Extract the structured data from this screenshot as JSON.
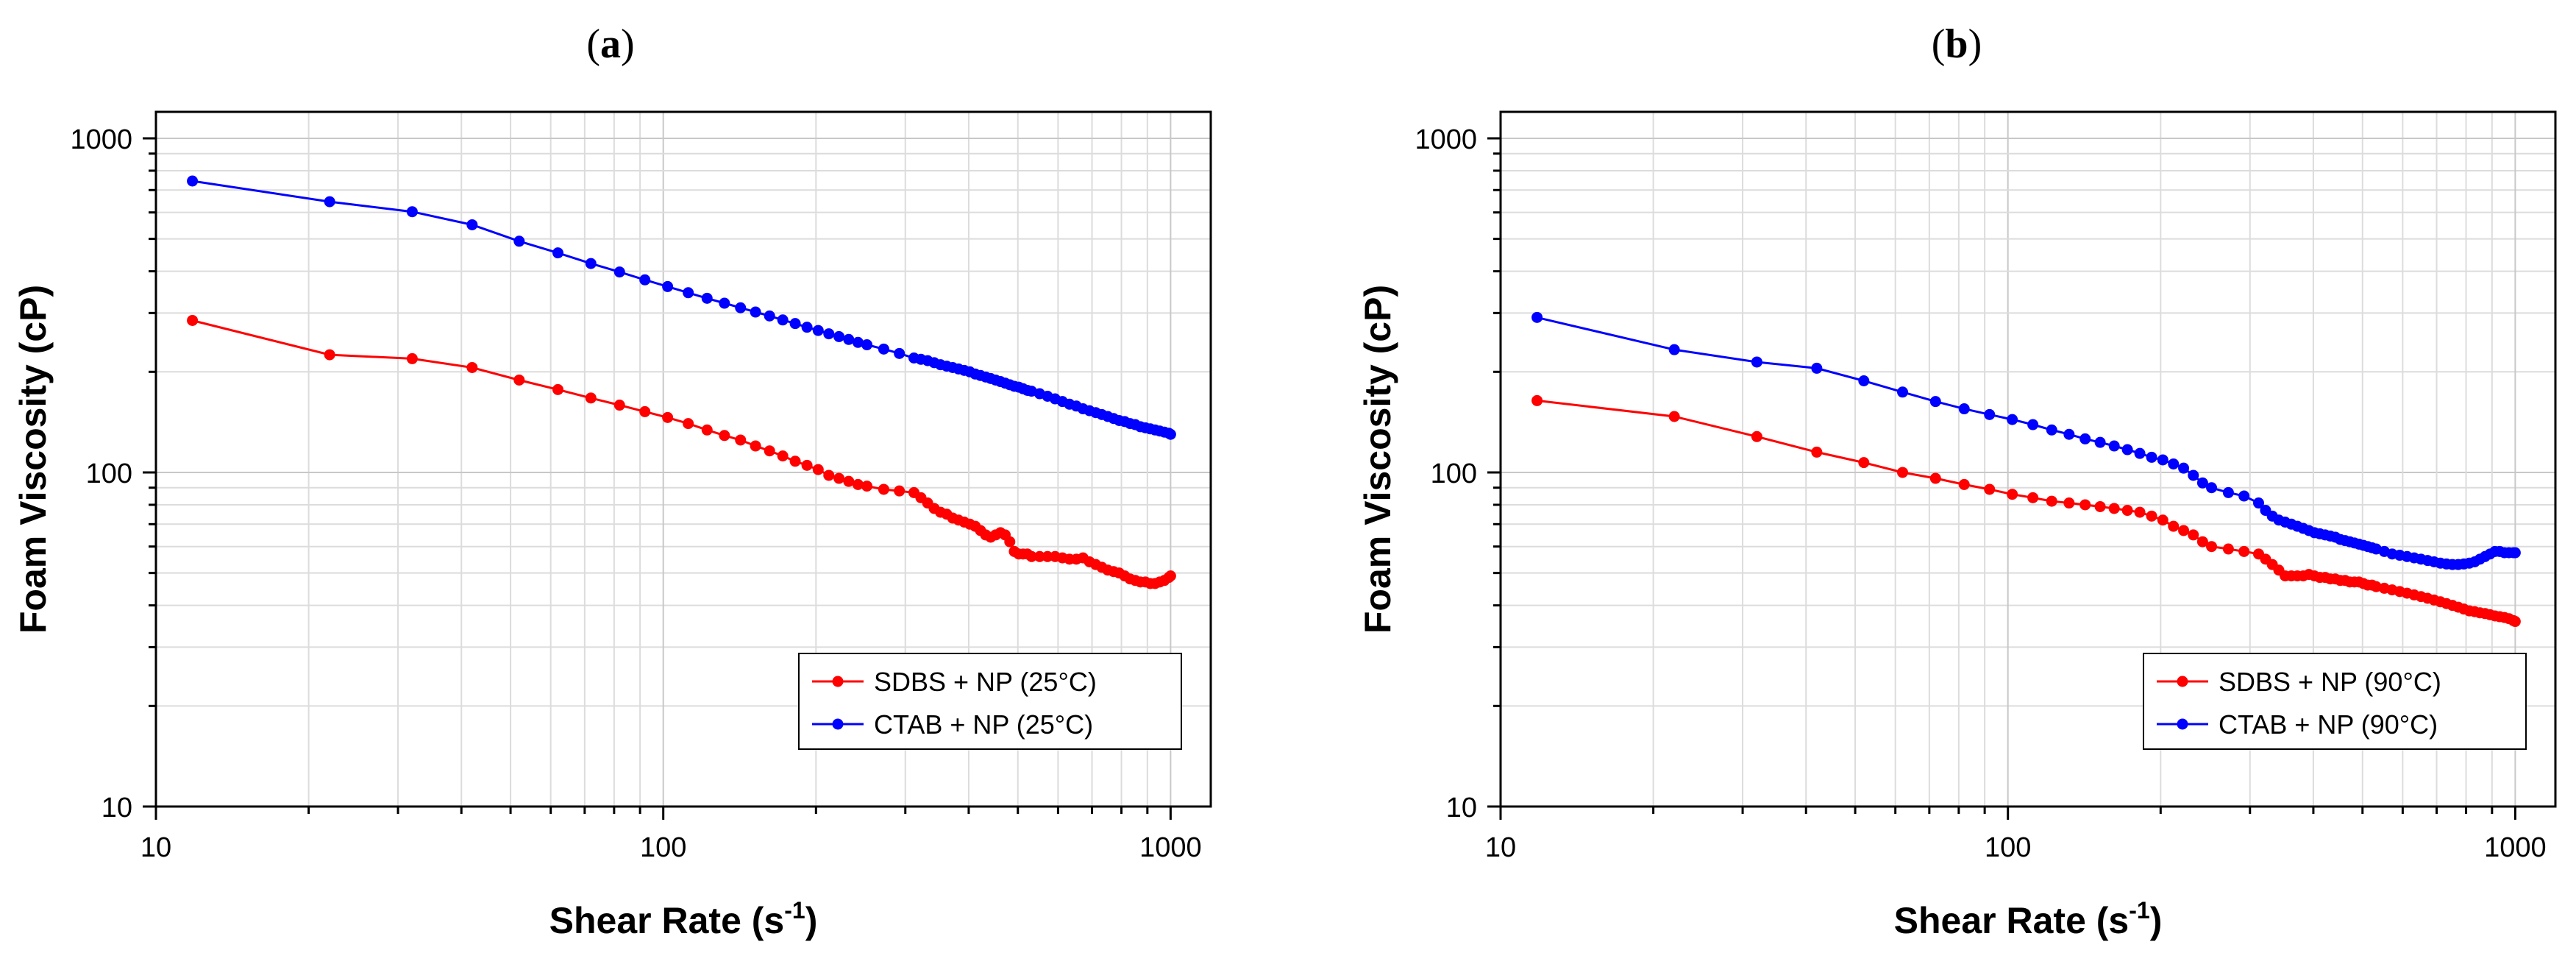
{
  "chart_data": [
    {
      "type": "line",
      "panel_label": "a",
      "xscale": "log",
      "yscale": "log",
      "xlim": [
        10,
        1200
      ],
      "ylim": [
        10,
        1200
      ],
      "xlabel": "Shear Rate (s",
      "xlabel_sup": "-1",
      "xlabel_end": ")",
      "ylabel": "Foam Viscosity (cP)",
      "xticks": [
        {
          "v": 10,
          "label": "10"
        },
        {
          "v": 100,
          "label": "100"
        },
        {
          "v": 1000,
          "label": "1000"
        }
      ],
      "yticks": [
        {
          "v": 10,
          "label": "10"
        },
        {
          "v": 100,
          "label": "100"
        },
        {
          "v": 1000,
          "label": "1000"
        }
      ],
      "grid": true,
      "legend_position": "bottom-right",
      "series": [
        {
          "name": "SDBS + NP (25°C)",
          "color": "#ff0000",
          "x": [
            11.8,
            22,
            32,
            42,
            52,
            62,
            72,
            82,
            92,
            102,
            112,
            122,
            132,
            142,
            152,
            162,
            172,
            182,
            192,
            202,
            212,
            222,
            232,
            242,
            252,
            272,
            292,
            312,
            322,
            332,
            342,
            352,
            362,
            372,
            382,
            392,
            402,
            412,
            422,
            432,
            442,
            452,
            462,
            472,
            482,
            492,
            502,
            512,
            522,
            532,
            552,
            572,
            592,
            612,
            632,
            652,
            672,
            692,
            712,
            732,
            752,
            772,
            792,
            812,
            832,
            852,
            872,
            892,
            912,
            932,
            952,
            972,
            992,
            1000
          ],
          "y": [
            285,
            225,
            219,
            206,
            189,
            177,
            167,
            159,
            152,
            146,
            140,
            134,
            129,
            125,
            120,
            116,
            112,
            108,
            105,
            102,
            98,
            96,
            94,
            92,
            91,
            89,
            88,
            87,
            84,
            81,
            78,
            76,
            75,
            73,
            72,
            71,
            70,
            69,
            67,
            65,
            64,
            65,
            66,
            65,
            62,
            58,
            57,
            57,
            57,
            56,
            56,
            56,
            56,
            55.5,
            55,
            55,
            55.5,
            54,
            53,
            52,
            51,
            50.5,
            50,
            49,
            48,
            47.5,
            47,
            47,
            46.5,
            46.5,
            47,
            47.5,
            48.5,
            49
          ]
        },
        {
          "name": "CTAB + NP (25°C)",
          "color": "#0000ff",
          "x": [
            11.8,
            22,
            32,
            42,
            52,
            62,
            72,
            82,
            92,
            102,
            112,
            122,
            132,
            142,
            152,
            162,
            172,
            182,
            192,
            202,
            212,
            222,
            232,
            242,
            252,
            272,
            292,
            312,
            322,
            332,
            342,
            352,
            362,
            372,
            382,
            392,
            402,
            412,
            422,
            432,
            442,
            452,
            462,
            472,
            482,
            492,
            502,
            512,
            522,
            532,
            552,
            572,
            592,
            612,
            632,
            652,
            672,
            692,
            712,
            732,
            752,
            772,
            792,
            812,
            832,
            852,
            872,
            892,
            912,
            932,
            952,
            972,
            992,
            1000
          ],
          "y": [
            745,
            646,
            603,
            551,
            492,
            454,
            422,
            398,
            377,
            360,
            345,
            332,
            321,
            311,
            302,
            294,
            286,
            279,
            272,
            266,
            260,
            255,
            250,
            245,
            241,
            234,
            227,
            220,
            218,
            216,
            213,
            210,
            208,
            206,
            204,
            202,
            200,
            197,
            195,
            193,
            191,
            189,
            187,
            185,
            183,
            181,
            180,
            178,
            176,
            175,
            172,
            169,
            166,
            163,
            160,
            158,
            155,
            153,
            151,
            149,
            147,
            145,
            143,
            142,
            140,
            139,
            137,
            136,
            135,
            134,
            133,
            132,
            131,
            130
          ]
        }
      ]
    },
    {
      "type": "line",
      "panel_label": "b",
      "xscale": "log",
      "yscale": "log",
      "xlim": [
        10,
        1200
      ],
      "ylim": [
        10,
        1200
      ],
      "xlabel": "Shear Rate (s",
      "xlabel_sup": "-1",
      "xlabel_end": ")",
      "ylabel": "Foam Viscosity (cP)",
      "xticks": [
        {
          "v": 10,
          "label": "10"
        },
        {
          "v": 100,
          "label": "100"
        },
        {
          "v": 1000,
          "label": "1000"
        }
      ],
      "yticks": [
        {
          "v": 10,
          "label": "10"
        },
        {
          "v": 100,
          "label": "100"
        },
        {
          "v": 1000,
          "label": "1000"
        }
      ],
      "grid": true,
      "legend_position": "bottom-right",
      "series": [
        {
          "name": "SDBS + NP (90°C)",
          "color": "#ff0000",
          "x": [
            11.8,
            22,
            32,
            42,
            52,
            62,
            72,
            82,
            92,
            102,
            112,
            122,
            132,
            142,
            152,
            162,
            172,
            182,
            192,
            202,
            212,
            222,
            232,
            242,
            252,
            272,
            292,
            312,
            322,
            332,
            342,
            352,
            362,
            372,
            382,
            392,
            402,
            412,
            422,
            432,
            442,
            452,
            462,
            472,
            482,
            492,
            502,
            512,
            522,
            532,
            552,
            572,
            592,
            612,
            632,
            652,
            672,
            692,
            712,
            732,
            752,
            772,
            792,
            812,
            832,
            852,
            872,
            892,
            912,
            932,
            952,
            972,
            992,
            1000
          ],
          "y": [
            164,
            147,
            128,
            115,
            107,
            100,
            96,
            92,
            89,
            86,
            84,
            82,
            81,
            80,
            79,
            78,
            77,
            76,
            74,
            72,
            69,
            67,
            65,
            62,
            60,
            59,
            58,
            57,
            55,
            53,
            51,
            49,
            49,
            49,
            49,
            49.5,
            49,
            48.5,
            48.5,
            48,
            48,
            47.5,
            47.5,
            47,
            47,
            47,
            46.5,
            46,
            46,
            45.5,
            45,
            44.5,
            44,
            43.5,
            43,
            42.5,
            42,
            41.5,
            41,
            40.5,
            40,
            39.5,
            39,
            38.5,
            38.3,
            38,
            37.8,
            37.5,
            37.2,
            37,
            36.8,
            36.5,
            36,
            35.8
          ]
        },
        {
          "name": "CTAB + NP (90°C)",
          "color": "#0000ff",
          "x": [
            11.8,
            22,
            32,
            42,
            52,
            62,
            72,
            82,
            92,
            102,
            112,
            122,
            132,
            142,
            152,
            162,
            172,
            182,
            192,
            202,
            212,
            222,
            232,
            242,
            252,
            272,
            292,
            312,
            322,
            332,
            342,
            352,
            362,
            372,
            382,
            392,
            402,
            412,
            422,
            432,
            442,
            452,
            462,
            472,
            482,
            492,
            502,
            512,
            522,
            532,
            552,
            572,
            592,
            612,
            632,
            652,
            672,
            692,
            712,
            732,
            752,
            772,
            792,
            812,
            832,
            852,
            872,
            892,
            912,
            932,
            952,
            972,
            992,
            1000
          ],
          "y": [
            291,
            233,
            214,
            205,
            188,
            174,
            163,
            155,
            149,
            144,
            139,
            134,
            130,
            126,
            123,
            120,
            117,
            114,
            111,
            109,
            106,
            103,
            98,
            93,
            90,
            87,
            85,
            81,
            77,
            74,
            72,
            71,
            70,
            69,
            68,
            67,
            66,
            65.5,
            65,
            64.5,
            64,
            63,
            62.5,
            62,
            61.5,
            61,
            60.5,
            60,
            59.5,
            59,
            58,
            57,
            56.5,
            56,
            55.5,
            55,
            54.5,
            54,
            53.5,
            53.2,
            53,
            53,
            53.2,
            53.5,
            54,
            55,
            56,
            57,
            58,
            58,
            57.5,
            57.5,
            57.5,
            57.5
          ]
        }
      ]
    }
  ]
}
